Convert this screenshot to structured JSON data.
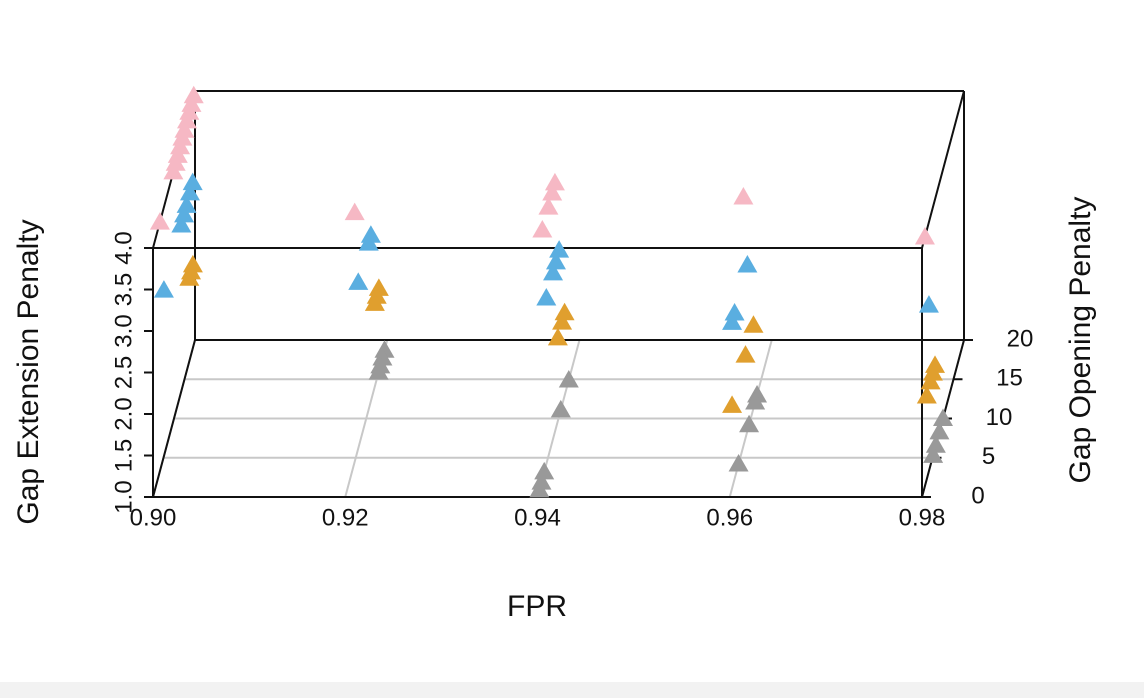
{
  "chart_data": {
    "type": "scatter3d",
    "xlabel": "FPR",
    "ylabel": "Gap Opening Penalty",
    "zlabel": "Gap Extension Penalty",
    "xlim": [
      0.9,
      0.98
    ],
    "xticks": [
      {
        "value": 0.9,
        "label": "0.90"
      },
      0.92,
      0.94,
      0.96,
      0.98
    ],
    "ylim": [
      0,
      20
    ],
    "yticks": [
      0,
      5,
      10,
      15,
      20
    ],
    "zlim": [
      1,
      4
    ],
    "zticks": [
      {
        "value": 1,
        "label": "1.0"
      },
      {
        "value": 1.5,
        "label": "1.5"
      },
      {
        "value": 2,
        "label": "2.0"
      },
      {
        "value": 2.5,
        "label": "2.5"
      },
      {
        "value": 3,
        "label": "3.0"
      },
      {
        "value": 3.5,
        "label": "3.5"
      },
      {
        "value": 4,
        "label": "4.0"
      }
    ],
    "grid": true,
    "series": [
      {
        "color": "#999999",
        "x": [
          0.92,
          0.92,
          0.92,
          0.92,
          0.94,
          0.94,
          0.94,
          0.94,
          0.94,
          0.96,
          0.96,
          0.96,
          0.96,
          0.98,
          0.98,
          0.98,
          0.98
        ],
        "y": [
          18.7,
          17.7,
          16.7,
          15.9,
          14.9,
          11.1,
          3.2,
          1.9,
          0.9,
          13,
          12.1,
          9.2,
          4.2,
          10,
          8.3,
          6.6,
          5.3
        ],
        "z": [
          1,
          1,
          1,
          1,
          1,
          1,
          1,
          1,
          1,
          1,
          1,
          1,
          1,
          1,
          1,
          1,
          1
        ]
      },
      {
        "color": "#e09f2e",
        "x": [
          0.9,
          0.9,
          0.9,
          0.92,
          0.92,
          0.92,
          0.94,
          0.94,
          0.94,
          0.96,
          0.96,
          0.96,
          0.98,
          0.98,
          0.98,
          0.98
        ],
        "y": [
          19,
          18.1,
          17.3,
          16,
          15,
          14.1,
          12.9,
          11.7,
          9.7,
          11.3,
          7.5,
          1.1,
          6.2,
          5.2,
          4.1,
          2.3
        ],
        "z": [
          2,
          2,
          2,
          2,
          2,
          2,
          2,
          2,
          2,
          2,
          2,
          2,
          2,
          2,
          2,
          2
        ]
      },
      {
        "color": "#5aaee0",
        "x": [
          0.9,
          0.9,
          0.9,
          0.9,
          0.9,
          0.9,
          0.92,
          0.92,
          0.92,
          0.94,
          0.94,
          0.94,
          0.94,
          0.96,
          0.96,
          0.96,
          0.98
        ],
        "y": [
          18.9,
          17.6,
          16,
          14.8,
          13.5,
          5.2,
          12.2,
          11.2,
          6.2,
          10.3,
          8.8,
          7.4,
          4.2,
          8.4,
          2.3,
          1.1,
          3.3
        ],
        "z": [
          3,
          3,
          3,
          3,
          3,
          3,
          3,
          3,
          3,
          3,
          3,
          3,
          3,
          3,
          3,
          3,
          3
        ]
      },
      {
        "color": "#f6b8c4",
        "x": [
          0.9,
          0.9,
          0.9,
          0.9,
          0.9,
          0.9,
          0.9,
          0.9,
          0.9,
          0.9,
          0.9,
          0.92,
          0.94,
          0.94,
          0.94,
          0.94,
          0.96,
          0.98
        ],
        "y": [
          19.4,
          18.3,
          17.3,
          16.2,
          15,
          14,
          12.9,
          11.8,
          10.8,
          9.7,
          3.3,
          4.5,
          8.3,
          7,
          5.2,
          2.3,
          6.5,
          1.4
        ],
        "z": [
          4,
          4,
          4,
          4,
          4,
          4,
          4,
          4,
          4,
          4,
          4,
          4,
          4,
          4,
          4,
          4,
          4,
          4
        ]
      }
    ]
  }
}
